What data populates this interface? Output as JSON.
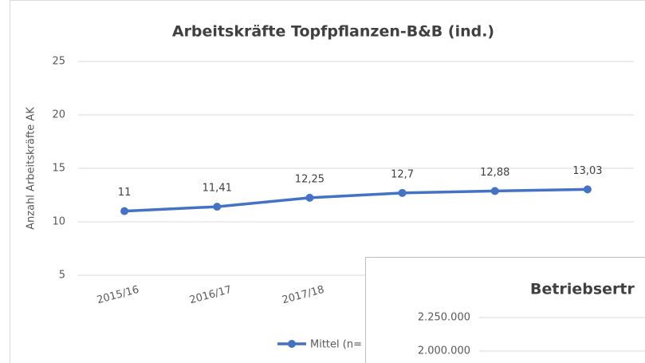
{
  "chart_data": [
    {
      "type": "line",
      "title": "Arbeitskräfte Topfpflanzen-B&B (ind.)",
      "y_label": "Anzahl Arbeitskräfte AK",
      "categories": [
        "2015/16",
        "2016/17",
        "2017/18",
        null,
        null,
        null
      ],
      "series": [
        {
          "name": "Mittel (n=",
          "color": "#4472c4",
          "values": [
            11,
            11.41,
            12.25,
            12.7,
            12.88,
            13.03
          ],
          "value_labels": [
            "11",
            "11,41",
            "12,25",
            "12,7",
            "12,88",
            "13,03"
          ]
        }
      ],
      "ylim": [
        5,
        25
      ],
      "yticks": [
        5,
        10,
        15,
        20,
        25
      ],
      "grid": true,
      "legend": "bottom"
    },
    {
      "type": "line",
      "title": "Betriebsertr",
      "yticks": [
        {
          "value": 2250000,
          "label": "2.250.000"
        },
        {
          "value": 2000000,
          "label": "2.000.000"
        }
      ],
      "grid": true
    }
  ]
}
